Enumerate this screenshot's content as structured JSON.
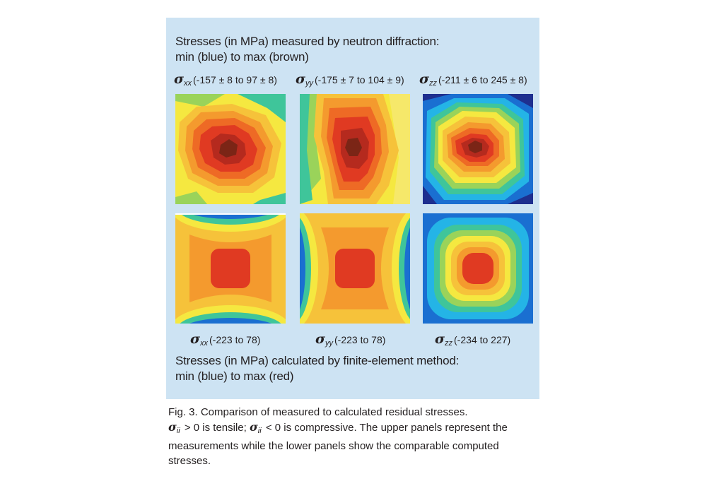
{
  "measured": {
    "title_line1": "Stresses (in MPa) measured by neutron diffraction:",
    "title_line2": "min (blue) to max (brown)",
    "labels": [
      {
        "symbol": "σ",
        "sub": "xx",
        "range": "(-157 ± 8 to 97 ± 8)"
      },
      {
        "symbol": "σ",
        "sub": "yy",
        "range": "(-175 ± 7 to 104 ± 9)"
      },
      {
        "symbol": "σ",
        "sub": "zz",
        "range": "(-211 ± 6 to 245 ± 8)"
      }
    ]
  },
  "calculated": {
    "labels": [
      {
        "symbol": "σ",
        "sub": "xx",
        "range": "(-223 to 78)"
      },
      {
        "symbol": "σ",
        "sub": "yy",
        "range": "(-223 to 78)"
      },
      {
        "symbol": "σ",
        "sub": "zz",
        "range": "(-234 to 227)"
      }
    ],
    "title_line1": "Stresses (in MPa) calculated by finite-element method:",
    "title_line2": "min (blue) to max (red)"
  },
  "caption": {
    "line1": "Fig. 3.  Comparison of measured to calculated residual stresses.",
    "sigma": "σ",
    "sub": "ii",
    "part_a": " > 0 is tensile; ",
    "part_b": " < 0 is compressive. The upper panels represent the",
    "line3": "measurements while the lower panels show the comparable computed",
    "line4": "stresses."
  },
  "colors": {
    "background_box": "#cde3f3",
    "scale": [
      "#1e2f8f",
      "#1a6fd1",
      "#24b4e6",
      "#3fc59a",
      "#9ad35a",
      "#f5e840",
      "#f6c23a",
      "#f49a2e",
      "#ee6a25",
      "#e03a22",
      "#b52a1e",
      "#7b2516"
    ]
  }
}
